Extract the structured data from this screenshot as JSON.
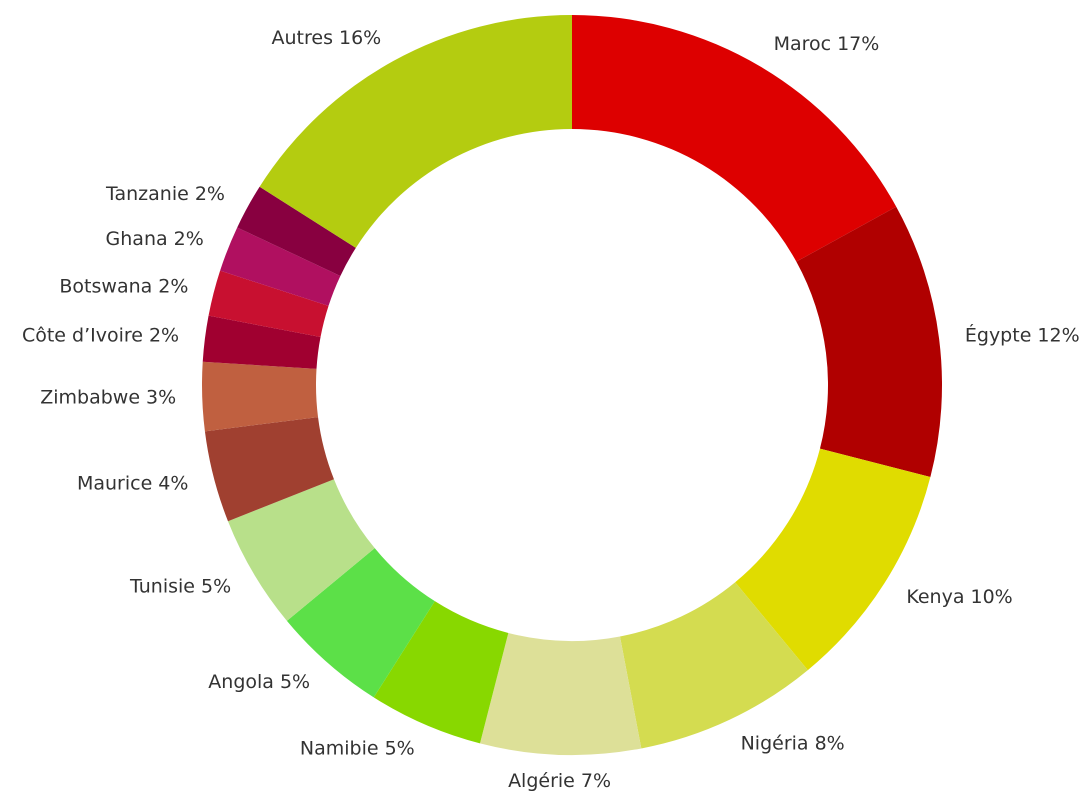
{
  "chart_data": {
    "type": "donut",
    "categories": [
      "Maroc",
      "Égypte",
      "Kenya",
      "Nigéria",
      "Algérie",
      "Namibie",
      "Angola",
      "Tunisie",
      "Maurice",
      "Zimbabwe",
      "Côte d’Ivoire",
      "Botswana",
      "Ghana",
      "Tanzanie",
      "Autres"
    ],
    "values": [
      17,
      12,
      10,
      8,
      7,
      5,
      5,
      5,
      4,
      3,
      2,
      2,
      2,
      2,
      16
    ],
    "value_labels": [
      "17%",
      "12%",
      "10%",
      "8%",
      "7%",
      "5%",
      "5%",
      "5%",
      "4%",
      "3%",
      "2%",
      "2%",
      "2%",
      "2%",
      "16%"
    ],
    "colors": [
      "#dd0000",
      "#b00000",
      "#e0dc00",
      "#d4dc50",
      "#dde098",
      "#88d800",
      "#5ce048",
      "#b8e08a",
      "#a04030",
      "#c06040",
      "#a00030",
      "#c81030",
      "#b01060",
      "#880040",
      "#b4cc10"
    ]
  }
}
